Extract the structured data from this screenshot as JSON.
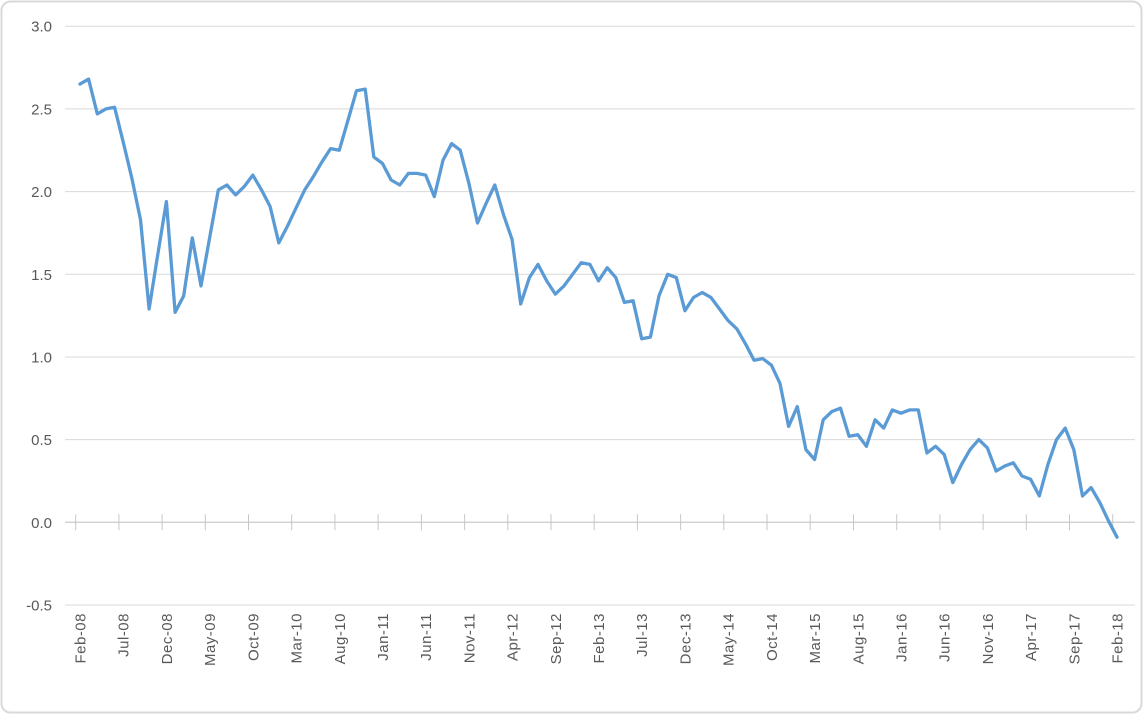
{
  "chart_data": {
    "type": "line",
    "title": "",
    "grid": true,
    "legend": "none",
    "ylim": [
      -0.5,
      3.0
    ],
    "y_tick_step": 0.5,
    "y_tick_labels": [
      "3.0",
      "2.5",
      "2.0",
      "1.5",
      "1.0",
      "0.5",
      "0.0",
      "-0.5"
    ],
    "x_tick_label_every_n_months": 5,
    "x_tick_labels": [
      "Feb-08",
      "Jul-08",
      "Dec-08",
      "May-09",
      "Oct-09",
      "Mar-10",
      "Aug-10",
      "Jan-11",
      "Jun-11",
      "Nov-11",
      "Apr-12",
      "Sep-12",
      "Feb-13",
      "Jul-13",
      "Dec-13",
      "May-14",
      "Oct-14",
      "Mar-15",
      "Aug-15",
      "Jan-16",
      "Jun-16",
      "Nov-16",
      "Apr-17",
      "Sep-17",
      "Feb-18"
    ],
    "categories": [
      "Feb-08",
      "Mar-08",
      "Apr-08",
      "May-08",
      "Jun-08",
      "Jul-08",
      "Aug-08",
      "Sep-08",
      "Oct-08",
      "Nov-08",
      "Dec-08",
      "Jan-09",
      "Feb-09",
      "Mar-09",
      "Apr-09",
      "May-09",
      "Jun-09",
      "Jul-09",
      "Aug-09",
      "Sep-09",
      "Oct-09",
      "Nov-09",
      "Dec-09",
      "Jan-10",
      "Feb-10",
      "Mar-10",
      "Apr-10",
      "May-10",
      "Jun-10",
      "Jul-10",
      "Aug-10",
      "Sep-10",
      "Oct-10",
      "Nov-10",
      "Dec-10",
      "Jan-11",
      "Feb-11",
      "Mar-11",
      "Apr-11",
      "May-11",
      "Jun-11",
      "Jul-11",
      "Aug-11",
      "Sep-11",
      "Oct-11",
      "Nov-11",
      "Dec-11",
      "Jan-12",
      "Feb-12",
      "Mar-12",
      "Apr-12",
      "May-12",
      "Jun-12",
      "Jul-12",
      "Aug-12",
      "Sep-12",
      "Oct-12",
      "Nov-12",
      "Dec-12",
      "Jan-13",
      "Feb-13",
      "Mar-13",
      "Apr-13",
      "May-13",
      "Jun-13",
      "Jul-13",
      "Aug-13",
      "Sep-13",
      "Oct-13",
      "Nov-13",
      "Dec-13",
      "Jan-14",
      "Feb-14",
      "Mar-14",
      "Apr-14",
      "May-14",
      "Jun-14",
      "Jul-14",
      "Aug-14",
      "Sep-14",
      "Oct-14",
      "Nov-14",
      "Dec-14",
      "Jan-15",
      "Feb-15",
      "Mar-15",
      "Apr-15",
      "May-15",
      "Jun-15",
      "Jul-15",
      "Aug-15",
      "Sep-15",
      "Oct-15",
      "Nov-15",
      "Dec-15",
      "Jan-16",
      "Feb-16",
      "Mar-16",
      "Apr-16",
      "May-16",
      "Jun-16",
      "Jul-16",
      "Aug-16",
      "Sep-16",
      "Oct-16",
      "Nov-16",
      "Dec-16",
      "Jan-17",
      "Feb-17",
      "Mar-17",
      "Apr-17",
      "May-17",
      "Jun-17",
      "Jul-17",
      "Aug-17",
      "Sep-17",
      "Oct-17",
      "Nov-17",
      "Dec-17",
      "Jan-18",
      "Feb-18"
    ],
    "values": [
      2.65,
      2.68,
      2.47,
      2.5,
      2.51,
      2.3,
      2.08,
      1.83,
      1.29,
      1.62,
      1.94,
      1.27,
      1.37,
      1.72,
      1.43,
      1.72,
      2.01,
      2.04,
      1.98,
      2.03,
      2.1,
      2.01,
      1.91,
      1.69,
      1.79,
      1.9,
      2.01,
      2.09,
      2.18,
      2.26,
      2.25,
      2.43,
      2.61,
      2.62,
      2.21,
      2.17,
      2.07,
      2.04,
      2.11,
      2.11,
      2.1,
      1.97,
      2.19,
      2.29,
      2.25,
      2.05,
      1.81,
      1.93,
      2.04,
      1.86,
      1.71,
      1.32,
      1.48,
      1.56,
      1.46,
      1.38,
      1.43,
      1.5,
      1.57,
      1.56,
      1.46,
      1.54,
      1.48,
      1.33,
      1.34,
      1.11,
      1.12,
      1.37,
      1.5,
      1.48,
      1.28,
      1.36,
      1.39,
      1.36,
      1.29,
      1.22,
      1.17,
      1.08,
      0.98,
      0.99,
      0.95,
      0.84,
      0.58,
      0.7,
      0.44,
      0.38,
      0.62,
      0.67,
      0.69,
      0.52,
      0.53,
      0.46,
      0.62,
      0.57,
      0.68,
      0.66,
      0.68,
      0.68,
      0.42,
      0.46,
      0.41,
      0.24,
      0.35,
      0.44,
      0.5,
      0.45,
      0.31,
      0.34,
      0.36,
      0.28,
      0.26,
      0.16,
      0.35,
      0.5,
      0.57,
      0.44,
      0.16,
      0.21,
      0.12,
      0.01,
      -0.09
    ],
    "colors": {
      "line": "#5B9BD5",
      "gridline": "#D9D9D9",
      "axis_line": "#C6C6C6",
      "axis_text": "#595959",
      "border": "#D9D9D9",
      "background": "#FFFFFF"
    }
  }
}
